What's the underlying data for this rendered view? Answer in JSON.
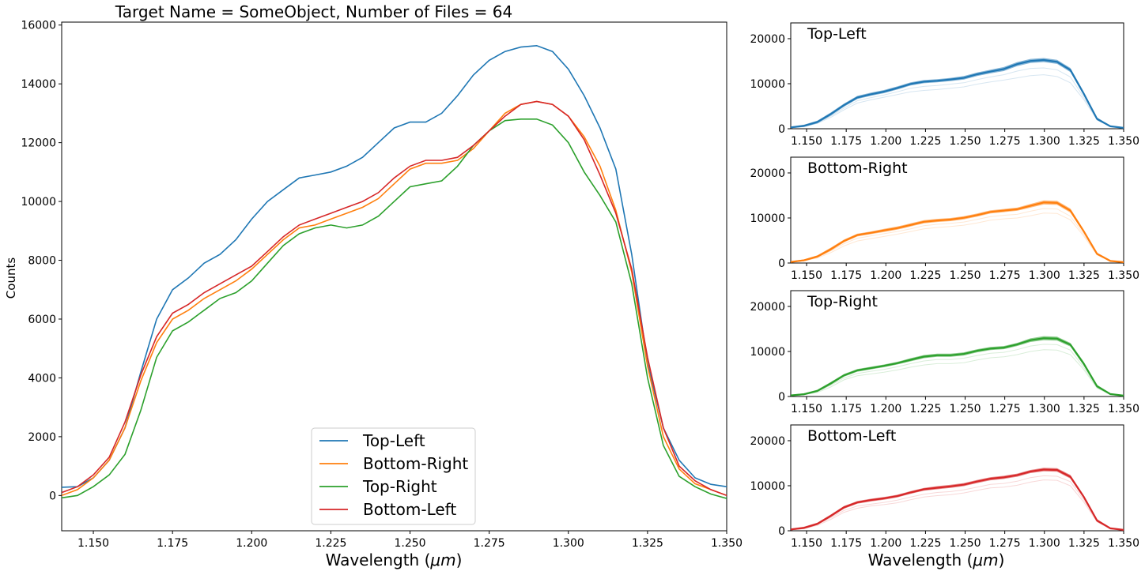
{
  "chart_data": [
    {
      "type": "line",
      "title": "Target Name = SomeObject, Number of Files = 64",
      "xlabel": "Wavelength ($\\mu m$)",
      "ylabel": "Counts",
      "xlim": [
        1.14,
        1.35
      ],
      "ylim": [
        -1200,
        16100
      ],
      "xticks": [
        1.15,
        1.175,
        1.2,
        1.225,
        1.25,
        1.275,
        1.3,
        1.325,
        1.35
      ],
      "xtick_labels": [
        "1.150",
        "1.175",
        "1.200",
        "1.225",
        "1.250",
        "1.275",
        "1.300",
        "1.325",
        "1.350"
      ],
      "yticks": [
        0,
        2000,
        4000,
        6000,
        8000,
        10000,
        12000,
        14000,
        16000
      ],
      "ytick_labels": [
        "0",
        "2000",
        "4000",
        "6000",
        "8000",
        "10000",
        "12000",
        "14000",
        "16000"
      ],
      "grid": false,
      "legend_position": "bottom-center",
      "x": [
        1.14,
        1.145,
        1.15,
        1.155,
        1.16,
        1.165,
        1.17,
        1.175,
        1.18,
        1.185,
        1.19,
        1.195,
        1.2,
        1.205,
        1.21,
        1.215,
        1.22,
        1.225,
        1.23,
        1.235,
        1.24,
        1.245,
        1.25,
        1.255,
        1.26,
        1.265,
        1.27,
        1.275,
        1.28,
        1.285,
        1.29,
        1.295,
        1.3,
        1.305,
        1.31,
        1.315,
        1.32,
        1.325,
        1.33,
        1.335,
        1.34,
        1.345,
        1.35
      ],
      "series": [
        {
          "name": "Top-Left",
          "color": "#1f77b4",
          "values": [
            280,
            300,
            600,
            1200,
            2300,
            4200,
            6000,
            7000,
            7400,
            7900,
            8200,
            8700,
            9400,
            10000,
            10400,
            10800,
            10900,
            11000,
            11200,
            11500,
            12000,
            12500,
            12700,
            12700,
            13000,
            13600,
            14300,
            14800,
            15100,
            15250,
            15300,
            15100,
            14500,
            13600,
            12500,
            11100,
            8200,
            4500,
            2300,
            1200,
            600,
            380,
            300
          ]
        },
        {
          "name": "Bottom-Right",
          "color": "#ff7f0e",
          "values": [
            0,
            200,
            600,
            1200,
            2300,
            3900,
            5200,
            6000,
            6300,
            6700,
            7000,
            7300,
            7700,
            8200,
            8700,
            9100,
            9200,
            9400,
            9600,
            9800,
            10100,
            10600,
            11100,
            11300,
            11300,
            11400,
            11800,
            12400,
            13000,
            13300,
            13400,
            13300,
            12900,
            12200,
            11200,
            9700,
            7600,
            4400,
            2000,
            900,
            400,
            200,
            0
          ]
        },
        {
          "name": "Top-Right",
          "color": "#2ca02c",
          "values": [
            -80,
            0,
            300,
            700,
            1400,
            2900,
            4700,
            5600,
            5900,
            6300,
            6700,
            6900,
            7300,
            7900,
            8500,
            8900,
            9100,
            9200,
            9100,
            9200,
            9500,
            10000,
            10500,
            10600,
            10700,
            11200,
            11900,
            12400,
            12750,
            12800,
            12800,
            12600,
            12000,
            11000,
            10200,
            9300,
            7200,
            4000,
            1700,
            650,
            300,
            50,
            -100
          ]
        },
        {
          "name": "Bottom-Left",
          "color": "#d62728",
          "values": [
            100,
            300,
            700,
            1300,
            2500,
            4100,
            5400,
            6200,
            6500,
            6900,
            7200,
            7500,
            7800,
            8300,
            8800,
            9200,
            9400,
            9600,
            9800,
            10000,
            10300,
            10800,
            11200,
            11400,
            11400,
            11500,
            11900,
            12400,
            12900,
            13300,
            13400,
            13300,
            12900,
            12100,
            10900,
            9600,
            7700,
            4700,
            2300,
            1000,
            500,
            200,
            0
          ]
        }
      ]
    },
    {
      "type": "line",
      "title": "Top-Left",
      "xlim": [
        1.14,
        1.35
      ],
      "ylim": [
        0,
        23500
      ],
      "xticks": [
        1.15,
        1.175,
        1.2,
        1.225,
        1.25,
        1.275,
        1.3,
        1.325,
        1.35
      ],
      "xtick_labels": [
        "1.150",
        "1.175",
        "1.200",
        "1.225",
        "1.250",
        "1.275",
        "1.300",
        "1.325",
        "1.350"
      ],
      "yticks": [
        0,
        10000,
        20000
      ],
      "ytick_labels": [
        "0",
        "10000",
        "20000"
      ],
      "color": "#1f77b4",
      "band_upper": [
        500,
        900,
        1800,
        3600,
        5600,
        7300,
        8000,
        8600,
        9400,
        10300,
        10800,
        11000,
        11300,
        11700,
        12500,
        13100,
        13700,
        14800,
        15500,
        15700,
        15300,
        13500,
        8200,
        2500,
        700,
        300
      ],
      "band_lower": [
        100,
        400,
        1200,
        2900,
        4900,
        6600,
        7300,
        7900,
        8700,
        9600,
        10100,
        10300,
        10600,
        10900,
        11700,
        12300,
        12800,
        13900,
        14600,
        14800,
        14400,
        12600,
        7400,
        1900,
        400,
        100
      ],
      "faint_lines": [
        [
          200,
          500,
          1200,
          2500,
          4200,
          5700,
          6400,
          7000,
          7600,
          8200,
          8500,
          8700,
          9000,
          9300,
          9900,
          10400,
          10800,
          11300,
          11800,
          12000,
          11600,
          10200,
          6500,
          2000,
          500,
          200
        ],
        [
          200,
          600,
          1400,
          2800,
          4600,
          6200,
          6900,
          7500,
          8200,
          9000,
          9400,
          9600,
          9900,
          10200,
          10900,
          11500,
          12000,
          12800,
          13400,
          13500,
          13100,
          11500,
          7000,
          2100,
          500,
          200
        ]
      ]
    },
    {
      "type": "line",
      "title": "Bottom-Right",
      "xlim": [
        1.14,
        1.35
      ],
      "ylim": [
        0,
        23500
      ],
      "xticks": [
        1.15,
        1.175,
        1.2,
        1.225,
        1.25,
        1.275,
        1.3,
        1.325,
        1.35
      ],
      "xtick_labels": [
        "1.150",
        "1.175",
        "1.200",
        "1.225",
        "1.250",
        "1.275",
        "1.300",
        "1.325",
        "1.350"
      ],
      "yticks": [
        0,
        10000,
        20000
      ],
      "ytick_labels": [
        "0",
        "10000",
        "20000"
      ],
      "color": "#ff7f0e",
      "band_upper": [
        400,
        800,
        1700,
        3400,
        5200,
        6500,
        7000,
        7600,
        8100,
        8800,
        9500,
        9800,
        10000,
        10400,
        11000,
        11700,
        12000,
        12300,
        13100,
        13900,
        13800,
        12100,
        7400,
        2300,
        600,
        300
      ],
      "band_lower": [
        100,
        400,
        1200,
        2700,
        4600,
        5900,
        6400,
        6900,
        7400,
        8100,
        8800,
        9100,
        9300,
        9700,
        10300,
        11000,
        11300,
        11600,
        12300,
        13000,
        12900,
        11200,
        6700,
        1800,
        300,
        100
      ],
      "faint_lines": [
        [
          200,
          500,
          1100,
          2300,
          3800,
          4900,
          5400,
          5900,
          6400,
          7000,
          7600,
          7900,
          8100,
          8400,
          8900,
          9500,
          9800,
          10000,
          10500,
          11100,
          11000,
          9600,
          6000,
          1800,
          400,
          200
        ],
        [
          200,
          500,
          1300,
          2700,
          4300,
          5500,
          6000,
          6500,
          7000,
          7600,
          8300,
          8600,
          8800,
          9100,
          9700,
          10300,
          10600,
          10800,
          11500,
          12100,
          12000,
          10400,
          6400,
          1900,
          400,
          200
        ]
      ]
    },
    {
      "type": "line",
      "title": "Top-Right",
      "xlim": [
        1.14,
        1.35
      ],
      "ylim": [
        0,
        23500
      ],
      "xticks": [
        1.15,
        1.175,
        1.2,
        1.225,
        1.25,
        1.275,
        1.3,
        1.325,
        1.35
      ],
      "xtick_labels": [
        "1.150",
        "1.175",
        "1.200",
        "1.225",
        "1.250",
        "1.275",
        "1.300",
        "1.325",
        "1.350"
      ],
      "yticks": [
        0,
        10000,
        20000
      ],
      "ytick_labels": [
        "0",
        "10000",
        "20000"
      ],
      "color": "#2ca02c",
      "band_upper": [
        400,
        700,
        1500,
        3200,
        5000,
        6100,
        6600,
        7100,
        7700,
        8500,
        9200,
        9500,
        9500,
        9800,
        10500,
        11000,
        11200,
        11900,
        12900,
        13400,
        13300,
        11900,
        7700,
        2600,
        700,
        300
      ],
      "band_lower": [
        100,
        300,
        1000,
        2600,
        4400,
        5500,
        6000,
        6500,
        7100,
        7800,
        8500,
        8800,
        8800,
        9100,
        9800,
        10300,
        10500,
        11200,
        12100,
        12500,
        12400,
        11100,
        6900,
        2000,
        400,
        100
      ],
      "faint_lines": [
        [
          200,
          400,
          900,
          2100,
          3700,
          4600,
          5000,
          5400,
          5900,
          6500,
          7000,
          7300,
          7300,
          7500,
          8100,
          8600,
          8800,
          9300,
          10000,
          10400,
          10300,
          9300,
          6000,
          1900,
          400,
          200
        ],
        [
          200,
          500,
          1100,
          2500,
          4100,
          5100,
          5600,
          6000,
          6600,
          7300,
          7900,
          8200,
          8200,
          8500,
          9100,
          9600,
          9800,
          10400,
          11200,
          11600,
          11500,
          10300,
          6500,
          2000,
          400,
          200
        ]
      ]
    },
    {
      "type": "line",
      "title": "Bottom-Left",
      "xlim": [
        1.14,
        1.35
      ],
      "ylim": [
        0,
        23500
      ],
      "xticks": [
        1.15,
        1.175,
        1.2,
        1.225,
        1.25,
        1.275,
        1.3,
        1.325,
        1.35
      ],
      "xtick_labels": [
        "1.150",
        "1.175",
        "1.200",
        "1.225",
        "1.250",
        "1.275",
        "1.300",
        "1.325",
        "1.350"
      ],
      "yticks": [
        0,
        10000,
        20000
      ],
      "ytick_labels": [
        "0",
        "10000",
        "20000"
      ],
      "color": "#d62728",
      "xlabel": "Wavelength ($\\mu m$)",
      "band_upper": [
        500,
        900,
        1800,
        3600,
        5500,
        6600,
        7100,
        7500,
        8000,
        8800,
        9500,
        9900,
        10200,
        10600,
        11300,
        11900,
        12200,
        12700,
        13500,
        14000,
        13900,
        12400,
        7900,
        2600,
        700,
        300
      ],
      "band_lower": [
        100,
        400,
        1300,
        3000,
        4900,
        6000,
        6500,
        6900,
        7400,
        8200,
        8900,
        9200,
        9500,
        9900,
        10600,
        11200,
        11500,
        12000,
        12800,
        13200,
        13100,
        11600,
        7200,
        2000,
        400,
        100
      ],
      "faint_lines": [
        [
          200,
          500,
          1200,
          2500,
          4100,
          5000,
          5500,
          5800,
          6200,
          6900,
          7500,
          7800,
          8000,
          8400,
          9000,
          9500,
          9700,
          10100,
          10800,
          11300,
          11200,
          10000,
          6400,
          2000,
          400,
          200
        ],
        [
          200,
          600,
          1400,
          2900,
          4500,
          5500,
          5900,
          6300,
          6800,
          7500,
          8100,
          8500,
          8700,
          9100,
          9700,
          10300,
          10500,
          11000,
          11800,
          12200,
          12100,
          10900,
          6900,
          2100,
          400,
          200
        ]
      ]
    }
  ]
}
